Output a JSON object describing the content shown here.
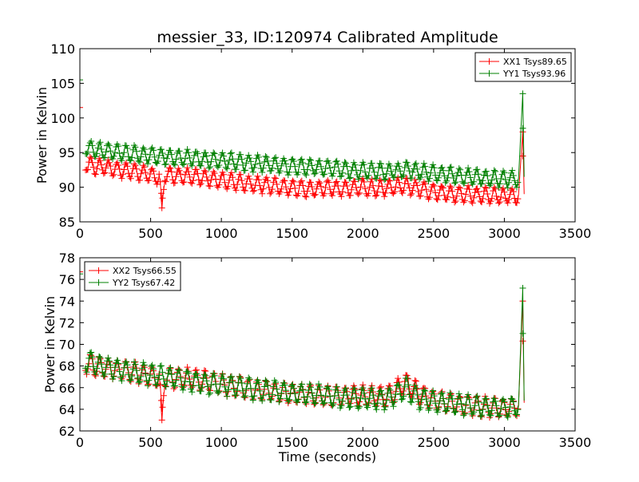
{
  "chart_data": [
    {
      "type": "line",
      "title": "messier_33, ID:120974 Calibrated Amplitude",
      "xlabel": "",
      "ylabel": "Power in Kelvin",
      "xlim": [
        0,
        3500
      ],
      "ylim": [
        85,
        110
      ],
      "xticks": [
        0,
        500,
        1000,
        1500,
        2000,
        2500,
        3000,
        3500
      ],
      "yticks": [
        85,
        90,
        95,
        100,
        105,
        110
      ],
      "legend_position": "top-right",
      "grid": false,
      "series": [
        {
          "name": "XX1 Tsys89.65",
          "color": "#ff0000",
          "marker": "+",
          "points": [
            [
              0,
              101.5
            ],
            [
              40,
              93.5
            ],
            [
              100,
              93.0
            ],
            [
              200,
              92.8
            ],
            [
              300,
              92.5
            ],
            [
              400,
              92.2
            ],
            [
              500,
              91.8
            ],
            [
              560,
              91.5
            ],
            [
              580,
              87.0
            ],
            [
              600,
              91.8
            ],
            [
              700,
              91.7
            ],
            [
              800,
              91.5
            ],
            [
              900,
              91.3
            ],
            [
              1000,
              91.0
            ],
            [
              1100,
              90.8
            ],
            [
              1200,
              90.5
            ],
            [
              1300,
              90.3
            ],
            [
              1400,
              90.1
            ],
            [
              1500,
              89.9
            ],
            [
              1600,
              89.8
            ],
            [
              1700,
              89.8
            ],
            [
              1800,
              89.8
            ],
            [
              1900,
              89.9
            ],
            [
              2000,
              90.0
            ],
            [
              2100,
              89.8
            ],
            [
              2200,
              90.0
            ],
            [
              2300,
              90.2
            ],
            [
              2400,
              89.7
            ],
            [
              2500,
              89.3
            ],
            [
              2600,
              89.1
            ],
            [
              2700,
              89.0
            ],
            [
              2800,
              88.9
            ],
            [
              2900,
              88.8
            ],
            [
              3000,
              88.7
            ],
            [
              3100,
              88.8
            ],
            [
              3130,
              98.0
            ],
            [
              3140,
              89.0
            ]
          ]
        },
        {
          "name": "YY1 Tsys93.96",
          "color": "#008000",
          "marker": "+",
          "points": [
            [
              0,
              105.5
            ],
            [
              40,
              95.8
            ],
            [
              100,
              95.4
            ],
            [
              200,
              95.2
            ],
            [
              300,
              95.0
            ],
            [
              400,
              94.8
            ],
            [
              500,
              94.6
            ],
            [
              600,
              94.4
            ],
            [
              700,
              94.3
            ],
            [
              800,
              94.2
            ],
            [
              900,
              94.0
            ],
            [
              1000,
              93.8
            ],
            [
              1100,
              93.7
            ],
            [
              1200,
              93.5
            ],
            [
              1300,
              93.4
            ],
            [
              1400,
              93.2
            ],
            [
              1500,
              93.0
            ],
            [
              1600,
              92.9
            ],
            [
              1700,
              92.8
            ],
            [
              1800,
              92.7
            ],
            [
              1900,
              92.5
            ],
            [
              2000,
              92.4
            ],
            [
              2100,
              92.3
            ],
            [
              2200,
              92.3
            ],
            [
              2300,
              92.6
            ],
            [
              2400,
              92.3
            ],
            [
              2500,
              92.0
            ],
            [
              2600,
              91.8
            ],
            [
              2700,
              91.6
            ],
            [
              2800,
              91.4
            ],
            [
              2900,
              91.3
            ],
            [
              3000,
              91.2
            ],
            [
              3100,
              91.2
            ],
            [
              3130,
              103.5
            ],
            [
              3140,
              91.5
            ]
          ]
        }
      ]
    },
    {
      "type": "line",
      "title": "",
      "xlabel": "Time (seconds)",
      "ylabel": "Power in Kelvin",
      "xlim": [
        0,
        3500
      ],
      "ylim": [
        62,
        78
      ],
      "xticks": [
        0,
        500,
        1000,
        1500,
        2000,
        2500,
        3000,
        3500
      ],
      "yticks": [
        62,
        64,
        66,
        68,
        70,
        72,
        74,
        76,
        78
      ],
      "legend_position": "top-left",
      "grid": false,
      "series": [
        {
          "name": "XX2 Tsys66.55",
          "color": "#ff0000",
          "marker": "+",
          "points": [
            [
              0,
              76.7
            ],
            [
              40,
              68.3
            ],
            [
              100,
              68.0
            ],
            [
              200,
              67.8
            ],
            [
              300,
              67.6
            ],
            [
              400,
              67.4
            ],
            [
              500,
              67.1
            ],
            [
              560,
              67.0
            ],
            [
              580,
              63.0
            ],
            [
              600,
              67.0
            ],
            [
              700,
              66.9
            ],
            [
              800,
              66.8
            ],
            [
              900,
              66.6
            ],
            [
              1000,
              66.3
            ],
            [
              1100,
              66.1
            ],
            [
              1200,
              65.9
            ],
            [
              1300,
              65.8
            ],
            [
              1400,
              65.6
            ],
            [
              1500,
              65.5
            ],
            [
              1600,
              65.4
            ],
            [
              1700,
              65.2
            ],
            [
              1800,
              65.2
            ],
            [
              1900,
              65.3
            ],
            [
              2000,
              65.3
            ],
            [
              2100,
              65.2
            ],
            [
              2200,
              65.3
            ],
            [
              2300,
              66.5
            ],
            [
              2400,
              65.4
            ],
            [
              2500,
              64.8
            ],
            [
              2600,
              64.6
            ],
            [
              2700,
              64.4
            ],
            [
              2800,
              64.3
            ],
            [
              2900,
              64.2
            ],
            [
              3000,
              64.1
            ],
            [
              3100,
              64.3
            ],
            [
              3130,
              74.0
            ],
            [
              3140,
              64.6
            ]
          ]
        },
        {
          "name": "YY2 Tsys67.42",
          "color": "#008000",
          "marker": "+",
          "points": [
            [
              0,
              76.5
            ],
            [
              40,
              68.5
            ],
            [
              100,
              68.2
            ],
            [
              200,
              67.9
            ],
            [
              300,
              67.6
            ],
            [
              400,
              67.4
            ],
            [
              500,
              67.2
            ],
            [
              600,
              67.0
            ],
            [
              700,
              66.8
            ],
            [
              800,
              66.6
            ],
            [
              900,
              66.4
            ],
            [
              1000,
              66.3
            ],
            [
              1100,
              66.1
            ],
            [
              1200,
              65.9
            ],
            [
              1300,
              65.8
            ],
            [
              1400,
              65.7
            ],
            [
              1500,
              65.5
            ],
            [
              1600,
              65.4
            ],
            [
              1700,
              65.3
            ],
            [
              1800,
              65.1
            ],
            [
              1900,
              65.0
            ],
            [
              2000,
              65.0
            ],
            [
              2100,
              64.9
            ],
            [
              2200,
              65.0
            ],
            [
              2300,
              66.0
            ],
            [
              2400,
              65.0
            ],
            [
              2500,
              64.8
            ],
            [
              2600,
              64.6
            ],
            [
              2700,
              64.4
            ],
            [
              2800,
              64.3
            ],
            [
              2900,
              64.2
            ],
            [
              3000,
              64.1
            ],
            [
              3100,
              64.3
            ],
            [
              3130,
              75.2
            ],
            [
              3140,
              64.8
            ]
          ]
        }
      ]
    }
  ]
}
